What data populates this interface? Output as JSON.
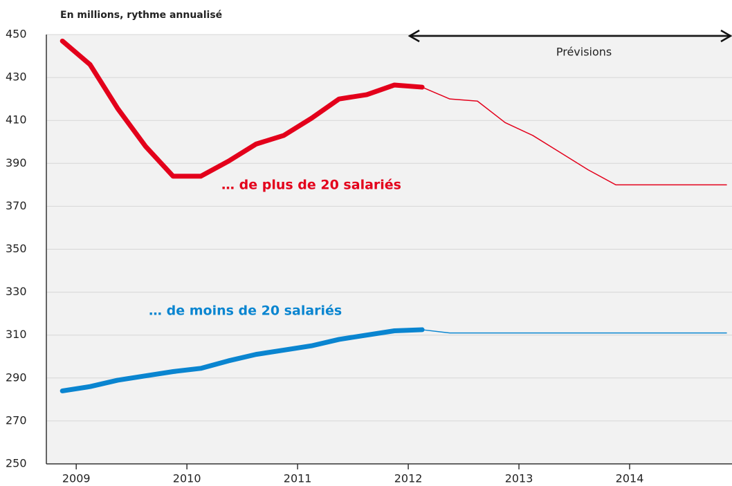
{
  "chart_data": {
    "type": "line",
    "title": "En millions, rythme annualisé",
    "x": [
      2008.875,
      2009.125,
      2009.375,
      2009.625,
      2009.875,
      2010.125,
      2010.375,
      2010.625,
      2010.875,
      2011.125,
      2011.375,
      2011.625,
      2011.875,
      2012.125,
      2012.375,
      2012.625,
      2012.875,
      2013.125,
      2013.375,
      2013.625,
      2013.875,
      2014.125,
      2014.375,
      2014.625,
      2014.875
    ],
    "series": [
      {
        "name": "… de plus de 20 salariés",
        "color": "#e3001b",
        "values": [
          447,
          436,
          415.5,
          398,
          384,
          384,
          391,
          399,
          403,
          411,
          420,
          422,
          426.5,
          425.5,
          420,
          419,
          409,
          403,
          395,
          387,
          380,
          380,
          380,
          380,
          380
        ]
      },
      {
        "name": "… de moins de 20 salariés",
        "color": "#0a85d0",
        "values": [
          284,
          286,
          289,
          291,
          293,
          294.5,
          298,
          301,
          303,
          305,
          308,
          310,
          312,
          312.5,
          311,
          311,
          311,
          311,
          311,
          311,
          311,
          311,
          311,
          311,
          311
        ]
      }
    ],
    "forecast": {
      "label": "Prévisions",
      "from": 2012
    },
    "xlim": [
      2008.73,
      2014.925
    ],
    "xticks": [
      2009,
      2010,
      2011,
      2012,
      2013,
      2014
    ],
    "ylim": [
      250,
      450
    ],
    "yticks": [
      250,
      270,
      290,
      310,
      330,
      350,
      370,
      390,
      410,
      430,
      450
    ],
    "grid": true
  }
}
